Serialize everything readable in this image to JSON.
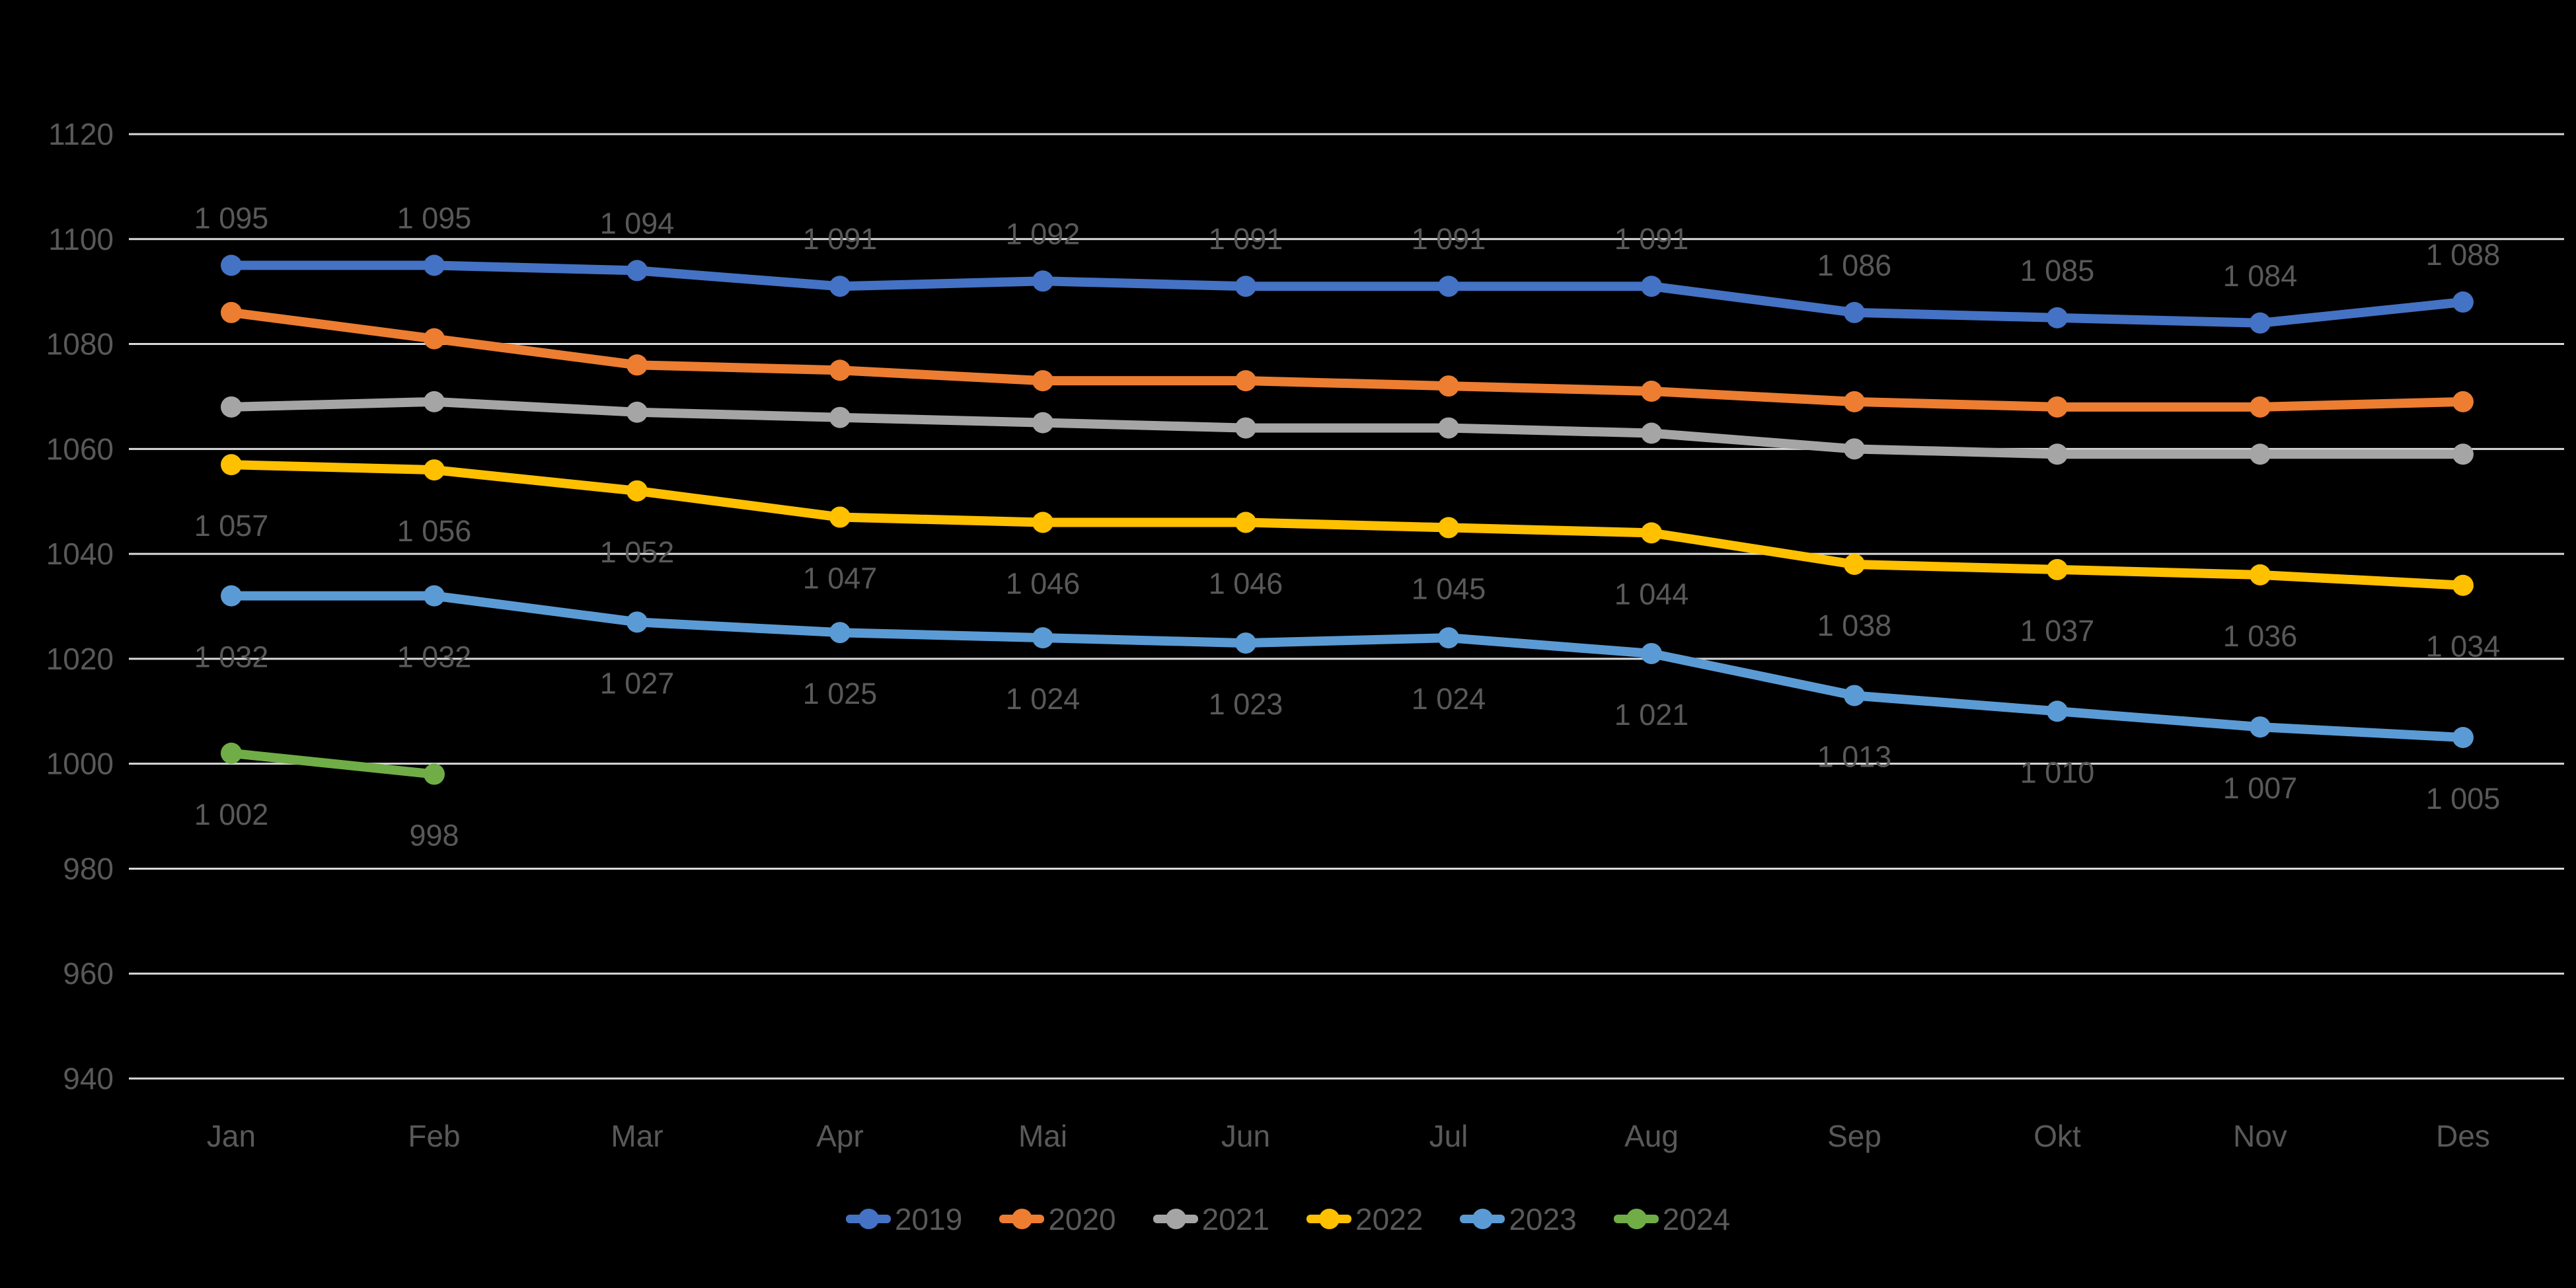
{
  "style": {
    "background": "#000000",
    "grid_color": "#D9D9D9",
    "axis_text_color": "#595959",
    "data_label_color": "#595959"
  },
  "chart_data": {
    "type": "line",
    "title": "",
    "categories": [
      "Jan",
      "Feb",
      "Mar",
      "Apr",
      "Mai",
      "Jun",
      "Jul",
      "Aug",
      "Sep",
      "Okt",
      "Nov",
      "Des"
    ],
    "y_axis": {
      "min": 940,
      "max": 1120,
      "step": 20,
      "tick_labels": [
        "1120",
        "1100",
        "1080",
        "1060",
        "1040",
        "1020",
        "1000",
        "980",
        "960",
        "940"
      ]
    },
    "grid": true,
    "legend_position": "bottom",
    "series": [
      {
        "name": "2019",
        "color": "#4472C4",
        "values": [
          1095,
          1095,
          1094,
          1091,
          1092,
          1091,
          1091,
          1091,
          1086,
          1085,
          1084,
          1088
        ],
        "data_labels": [
          "1 095",
          "1 095",
          "1 094",
          "1 091",
          "1 092",
          "1 091",
          "1 091",
          "1 091",
          "1 086",
          "1 085",
          "1 084",
          "1 088"
        ],
        "label_position": "above"
      },
      {
        "name": "2020",
        "color": "#ED7D31",
        "values": [
          1086,
          1081,
          1076,
          1075,
          1073,
          1073,
          1072,
          1071,
          1069,
          1068,
          1068,
          1069
        ],
        "data_labels": null,
        "label_position": "none"
      },
      {
        "name": "2021",
        "color": "#A5A5A5",
        "values": [
          1068,
          1069,
          1067,
          1066,
          1065,
          1064,
          1064,
          1063,
          1060,
          1059,
          1059,
          1059
        ],
        "data_labels": null,
        "label_position": "none"
      },
      {
        "name": "2022",
        "color": "#FFC000",
        "values": [
          1057,
          1056,
          1052,
          1047,
          1046,
          1046,
          1045,
          1044,
          1038,
          1037,
          1036,
          1034
        ],
        "data_labels": [
          "1 057",
          "1 056",
          "1 052",
          "1 047",
          "1 046",
          "1 046",
          "1 045",
          "1 044",
          "1 038",
          "1 037",
          "1 036",
          "1 034"
        ],
        "label_position": "below"
      },
      {
        "name": "2023",
        "color": "#5B9BD5",
        "values": [
          1032,
          1032,
          1027,
          1025,
          1024,
          1023,
          1024,
          1021,
          1013,
          1010,
          1007,
          1005
        ],
        "data_labels": [
          "1 032",
          "1 032",
          "1 027",
          "1 025",
          "1 024",
          "1 023",
          "1 024",
          "1 021",
          "1 013",
          "1 010",
          "1 007",
          "1 005"
        ],
        "label_position": "below"
      },
      {
        "name": "2024",
        "color": "#70AD47",
        "values": [
          1002,
          998
        ],
        "data_labels": [
          "1 002",
          "998"
        ],
        "label_position": "below"
      }
    ]
  }
}
